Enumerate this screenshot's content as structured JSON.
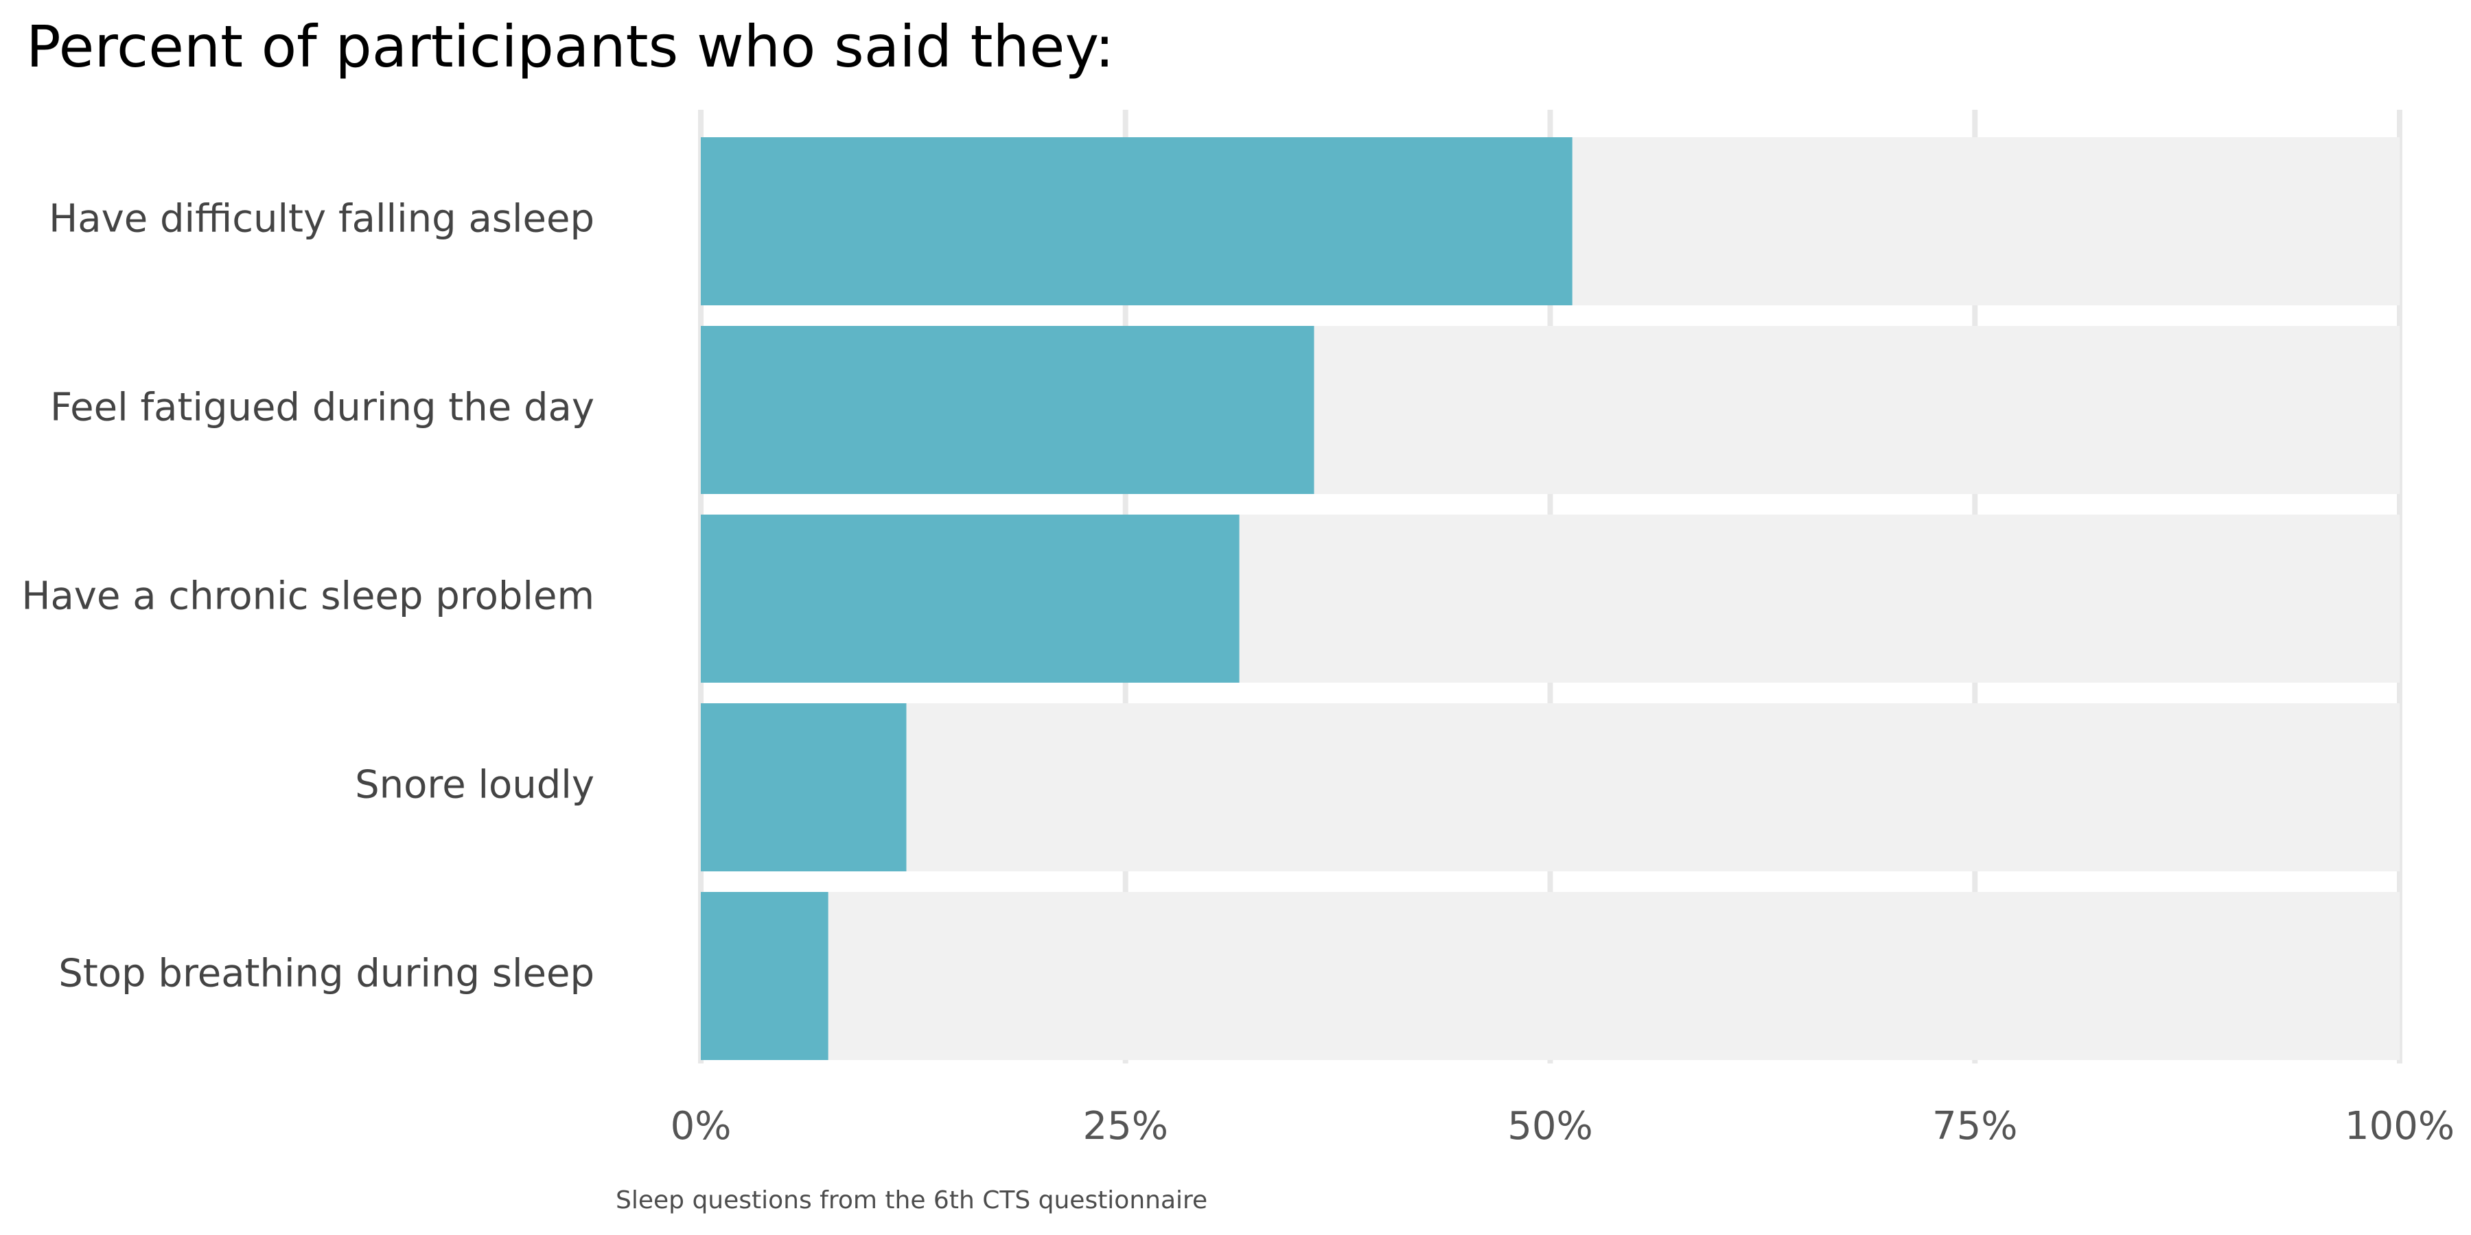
{
  "chart_data": {
    "type": "bar",
    "orientation": "horizontal",
    "title": "Percent of participants who said they:",
    "caption": "Sleep questions from the 6th CTS questionnaire",
    "categories": [
      "Have difficulty falling asleep",
      "Feel fatigued during the day",
      "Have a chronic sleep problem",
      "Snore loudly",
      "Stop breathing during sleep"
    ],
    "values": [
      51.3,
      36.1,
      31.7,
      12.1,
      7.5
    ],
    "xlim": [
      0,
      100
    ],
    "x_ticks": [
      0,
      25,
      50,
      75,
      100
    ],
    "x_tick_labels": [
      "0%",
      "25%",
      "50%",
      "75%",
      "100%"
    ],
    "xlabel": "",
    "ylabel": "",
    "grid": true,
    "legend": "none",
    "colors": {
      "bar": "#5fb5c6",
      "background_bar": "#f1f1f1",
      "grid": "#e8e8e8"
    }
  }
}
